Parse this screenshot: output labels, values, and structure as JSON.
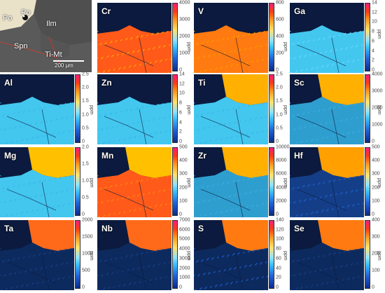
{
  "petrography": {
    "labels": [
      "Po",
      "Po",
      "Ilm",
      "Spn",
      "Ti-Mt"
    ],
    "scale_bar": "200 μm"
  },
  "unit_label": "ppm",
  "maps": [
    {
      "id": "cr",
      "label": "Cr",
      "ticks": [
        "4000",
        "3000",
        "2000",
        "1000",
        "0"
      ]
    },
    {
      "id": "v",
      "label": "V",
      "ticks": [
        "800",
        "600",
        "400",
        "200",
        "0"
      ]
    },
    {
      "id": "ga",
      "label": "Ga",
      "ticks": [
        "14",
        "12",
        "10",
        "8",
        "6",
        "4",
        "2",
        "0"
      ]
    },
    {
      "id": "al",
      "label": "Al",
      "ticks": [
        "2.5",
        "2.0",
        "1.5",
        "1.0",
        "0.5",
        "0"
      ]
    },
    {
      "id": "zn",
      "label": "Zn",
      "ticks": [
        "14",
        "12",
        "10",
        "8",
        "6",
        "4",
        "2",
        "0"
      ]
    },
    {
      "id": "ti",
      "label": "Ti",
      "ticks": [
        "2.5",
        "2.0",
        "1.5",
        "1.0",
        "0.5",
        "0"
      ]
    },
    {
      "id": "sc",
      "label": "Sc",
      "ticks": [
        "4000",
        "3000",
        "2000",
        "1000",
        "0"
      ]
    },
    {
      "id": "mg",
      "label": "Mg",
      "ticks": [
        "2.0",
        "1.5",
        "1.0",
        "0.5",
        "0"
      ]
    },
    {
      "id": "mn",
      "label": "Mn",
      "ticks": [
        "500",
        "400",
        "300",
        "200",
        "100",
        "0"
      ]
    },
    {
      "id": "zr",
      "label": "Zr",
      "ticks": [
        "10000",
        "8000",
        "6000",
        "4000",
        "2000",
        "0"
      ]
    },
    {
      "id": "hf",
      "label": "Hf",
      "ticks": [
        "500",
        "400",
        "300",
        "200",
        "100",
        "0"
      ]
    },
    {
      "id": "ta",
      "label": "Ta",
      "ticks": [
        "2000",
        "1500",
        "1000",
        "500",
        "0"
      ]
    },
    {
      "id": "nb",
      "label": "Nb",
      "ticks": [
        "7000",
        "6000",
        "5000",
        "4000",
        "3000",
        "2000",
        "1000",
        "0"
      ]
    },
    {
      "id": "s",
      "label": "S",
      "ticks": [
        "140",
        "120",
        "100",
        "80",
        "60",
        "40",
        "20",
        "0"
      ]
    },
    {
      "id": "se",
      "label": "Se",
      "ticks": [
        "400",
        "300",
        "200",
        "100",
        "0"
      ]
    }
  ],
  "colors": {
    "background_map": "#0b1a3e",
    "matrix": "#43c7ef",
    "hot": "#ff6a1a",
    "high": "#ffc000"
  }
}
